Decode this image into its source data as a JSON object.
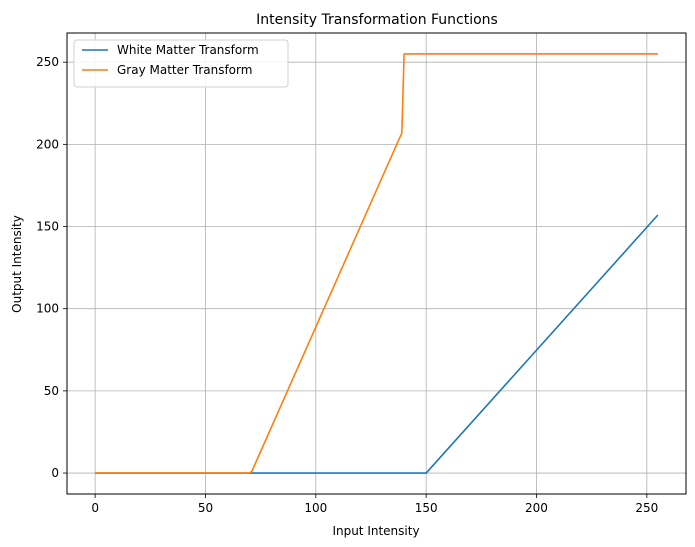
{
  "chart_data": {
    "type": "line",
    "title": "Intensity Transformation Functions",
    "xlabel": "Input Intensity",
    "ylabel": "Output Intensity",
    "xlim": [
      -12.75,
      267.75
    ],
    "ylim": [
      -12.75,
      267.75
    ],
    "xticks": [
      0,
      50,
      100,
      150,
      200,
      250
    ],
    "yticks": [
      0,
      50,
      100,
      150,
      200,
      250
    ],
    "grid": true,
    "legend_position": "top-left",
    "series": [
      {
        "name": "White Matter Transform",
        "color": "#1f77b4",
        "x": [
          0,
          150,
          255
        ],
        "y": [
          0,
          0,
          157
        ]
      },
      {
        "name": "Gray Matter Transform",
        "color": "#ff7f0e",
        "x": [
          0,
          70,
          71,
          139,
          140,
          255
        ],
        "y": [
          0,
          0,
          1,
          207,
          255,
          255
        ]
      }
    ]
  }
}
